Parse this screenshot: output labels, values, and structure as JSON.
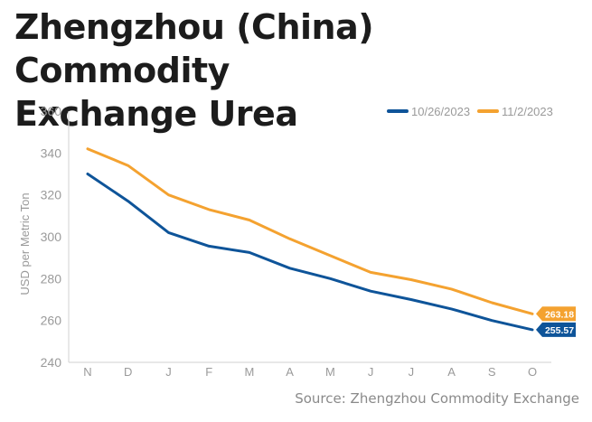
{
  "header": {
    "title_line1": "Zhengzhou (China) Commodity",
    "title_line2": "Exchange Urea"
  },
  "source": "Source: Zhengzhou Commodity Exchange",
  "colors": {
    "series_1": "#0e5499",
    "series_2": "#f4a230",
    "axis_text": "#9a9a9a",
    "axis_line": "#d9d9d9"
  },
  "chart_data": {
    "type": "line",
    "title": "Zhengzhou (China) Commodity Exchange Urea",
    "xlabel": "",
    "ylabel": "USD per Metric Ton",
    "categories": [
      "N",
      "D",
      "J",
      "F",
      "M",
      "A",
      "M",
      "J",
      "J",
      "A",
      "S",
      "O"
    ],
    "ylim": [
      240,
      360
    ],
    "yticks": [
      240,
      260,
      280,
      300,
      320,
      340,
      360
    ],
    "grid": false,
    "legend_position": "top-right",
    "series": [
      {
        "name": "10/26/2023",
        "color": "#0e5499",
        "values": [
          330,
          317,
          302,
          295.5,
          292.5,
          285,
          280,
          274,
          270,
          265.5,
          260,
          255.57
        ],
        "end_label": "255.57"
      },
      {
        "name": "11/2/2023",
        "color": "#f4a230",
        "values": [
          342,
          334,
          320,
          313,
          308,
          299,
          291,
          283,
          279.5,
          275,
          268.5,
          263.18
        ],
        "end_label": "263.18"
      }
    ]
  }
}
